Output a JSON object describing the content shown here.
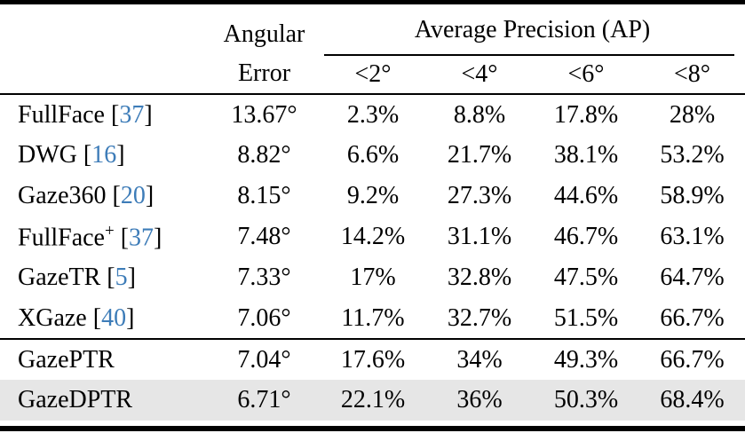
{
  "table": {
    "header": {
      "angular_line1": "Angular",
      "angular_line2": "Error",
      "ap_group": "Average Precision (AP)",
      "ap_cols": [
        "<2°",
        "<4°",
        "<6°",
        "<8°"
      ]
    },
    "rows": [
      {
        "method": "FullFace",
        "sup": "",
        "cite": "37",
        "angular_error": "13.67°",
        "ap": [
          "2.3%",
          "8.8%",
          "17.8%",
          "28%"
        ]
      },
      {
        "method": "DWG",
        "sup": "",
        "cite": "16",
        "angular_error": "8.82°",
        "ap": [
          "6.6%",
          "21.7%",
          "38.1%",
          "53.2%"
        ]
      },
      {
        "method": "Gaze360",
        "sup": "",
        "cite": "20",
        "angular_error": "8.15°",
        "ap": [
          "9.2%",
          "27.3%",
          "44.6%",
          "58.9%"
        ]
      },
      {
        "method": "FullFace",
        "sup": "+",
        "cite": "37",
        "angular_error": "7.48°",
        "ap": [
          "14.2%",
          "31.1%",
          "46.7%",
          "63.1%"
        ]
      },
      {
        "method": "GazeTR",
        "sup": "",
        "cite": "5",
        "angular_error": "7.33°",
        "ap": [
          "17%",
          "32.8%",
          "47.5%",
          "64.7%"
        ]
      },
      {
        "method": "XGaze",
        "sup": "",
        "cite": "40",
        "angular_error": "7.06°",
        "ap": [
          "11.7%",
          "32.7%",
          "51.5%",
          "66.7%"
        ]
      },
      {
        "method": "GazePTR",
        "sup": "",
        "cite": "",
        "angular_error": "7.04°",
        "ap": [
          "17.6%",
          "34%",
          "49.3%",
          "66.7%"
        ],
        "rule_above": true
      },
      {
        "method": "GazeDPTR",
        "sup": "",
        "cite": "",
        "angular_error": "6.71°",
        "ap": [
          "22.1%",
          "36%",
          "50.3%",
          "68.4%"
        ],
        "highlighted": true
      }
    ],
    "colors": {
      "citation_blue": "#3d7cb8",
      "highlight_grey": "#e6e6e6",
      "rule_black": "#000000"
    }
  },
  "chart_data": {
    "type": "table",
    "columns": [
      "Method",
      "Angular Error",
      "AP <2°",
      "AP <4°",
      "AP <6°",
      "AP <8°"
    ],
    "rows": [
      [
        "FullFace [37]",
        "13.67°",
        "2.3%",
        "8.8%",
        "17.8%",
        "28%"
      ],
      [
        "DWG [16]",
        "8.82°",
        "6.6%",
        "21.7%",
        "38.1%",
        "53.2%"
      ],
      [
        "Gaze360 [20]",
        "8.15°",
        "9.2%",
        "27.3%",
        "44.6%",
        "58.9%"
      ],
      [
        "FullFace+ [37]",
        "7.48°",
        "14.2%",
        "31.1%",
        "46.7%",
        "63.1%"
      ],
      [
        "GazeTR [5]",
        "7.33°",
        "17%",
        "32.8%",
        "47.5%",
        "64.7%"
      ],
      [
        "XGaze [40]",
        "7.06°",
        "11.7%",
        "32.7%",
        "51.5%",
        "66.7%"
      ],
      [
        "GazePTR",
        "7.04°",
        "17.6%",
        "34%",
        "49.3%",
        "66.7%"
      ],
      [
        "GazeDPTR",
        "6.71°",
        "22.1%",
        "36%",
        "50.3%",
        "68.4%"
      ]
    ]
  }
}
